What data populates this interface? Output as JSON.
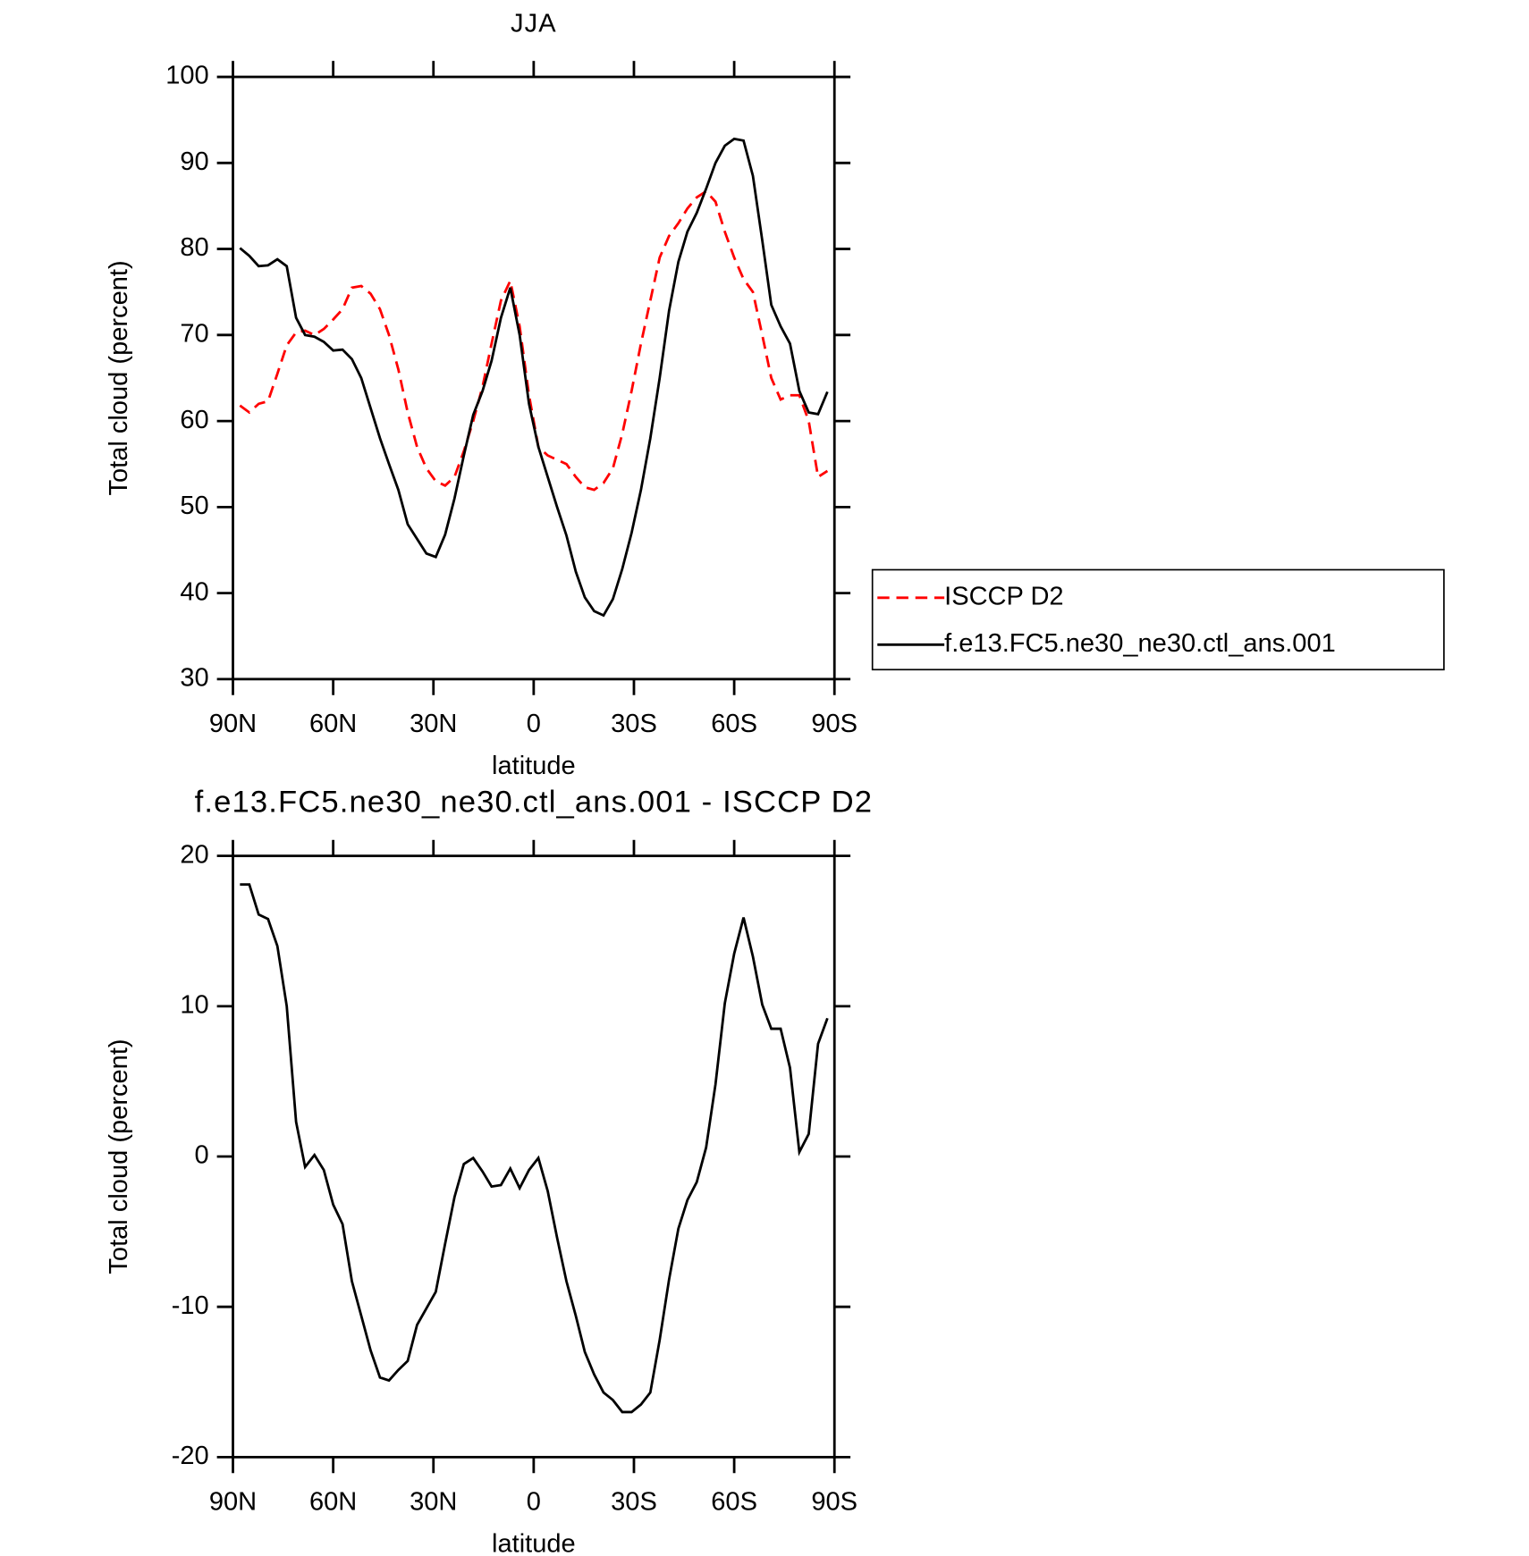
{
  "chart_data": [
    {
      "type": "line",
      "title": "JJA",
      "xlabel": "latitude",
      "ylabel": "Total cloud (percent)",
      "x": [
        87.9,
        85.1,
        82.3,
        79.5,
        76.7,
        73.9,
        71.1,
        68.4,
        65.6,
        62.8,
        60.0,
        57.2,
        54.4,
        51.6,
        48.8,
        46.0,
        43.3,
        40.5,
        37.7,
        34.9,
        32.1,
        29.3,
        26.5,
        23.7,
        20.9,
        18.1,
        15.3,
        12.6,
        9.8,
        7.0,
        4.2,
        1.4,
        -1.4,
        -4.2,
        -7.0,
        -9.8,
        -12.6,
        -15.3,
        -18.1,
        -20.9,
        -23.7,
        -26.5,
        -29.3,
        -32.1,
        -34.9,
        -37.7,
        -40.5,
        -43.3,
        -46.0,
        -48.8,
        -51.6,
        -54.4,
        -57.2,
        -60.0,
        -62.8,
        -65.6,
        -68.4,
        -71.1,
        -73.9,
        -76.7,
        -79.5,
        -82.3,
        -85.1,
        -87.9
      ],
      "series": [
        {
          "name": "ISCCP D2",
          "color": "#ff0000",
          "line_style": "dashed",
          "values": [
            61.8,
            61,
            62,
            62.3,
            65.5,
            68.8,
            70.3,
            70.5,
            70,
            70.7,
            71.8,
            73,
            75.5,
            75.7,
            74.8,
            73,
            70,
            66,
            61,
            57,
            54.5,
            53,
            52.5,
            53.5,
            56.5,
            60,
            64,
            69,
            74,
            76.3,
            71,
            63,
            57,
            56,
            55.5,
            55,
            53.5,
            52.3,
            52,
            52.8,
            54.5,
            58.5,
            63.5,
            69,
            74,
            79,
            81.5,
            83,
            84.7,
            86,
            86.7,
            85.5,
            82,
            79,
            76.5,
            75,
            70,
            65,
            62.5,
            63,
            63,
            60,
            53.5,
            54.2
          ]
        },
        {
          "name": "f.e13.FC5.ne30_ne30.ctl_ans.001",
          "color": "#000000",
          "line_style": "solid",
          "values": [
            80.1,
            79.2,
            78,
            78.1,
            78.8,
            78,
            72,
            70,
            69.8,
            69.2,
            68.2,
            68.3,
            67.2,
            65,
            61.5,
            58,
            55,
            52,
            48,
            46.3,
            44.6,
            44.2,
            46.8,
            51,
            56,
            60.7,
            63.5,
            67,
            72,
            75.5,
            70,
            62,
            57,
            53.5,
            50,
            46.7,
            42.5,
            39.5,
            37.9,
            37.4,
            39.3,
            42.8,
            47,
            52,
            58,
            65,
            72.8,
            78.5,
            82,
            84.2,
            87,
            90,
            92,
            92.8,
            92.6,
            88.5,
            81,
            73.5,
            71,
            69,
            63.5,
            61,
            60.8,
            63.4
          ]
        }
      ],
      "xlim": [
        90,
        -90
      ],
      "xticks": [
        {
          "value": 90,
          "label": "90N"
        },
        {
          "value": 60,
          "label": "60N"
        },
        {
          "value": 30,
          "label": "30N"
        },
        0,
        {
          "value": -30,
          "label": "30S"
        },
        {
          "value": -60,
          "label": "60S"
        },
        {
          "value": -90,
          "label": "90S"
        }
      ],
      "ylim": [
        30,
        100
      ],
      "yticks": [
        30,
        40,
        50,
        60,
        70,
        80,
        90,
        100
      ],
      "legend": "right"
    },
    {
      "type": "line",
      "title": "f.e13.FC5.ne30_ne30.ctl_ans.001 - ISCCP D2",
      "xlabel": "latitude",
      "ylabel": "Total cloud (percent)",
      "x": [
        87.9,
        85.1,
        82.3,
        79.5,
        76.7,
        73.9,
        71.1,
        68.4,
        65.6,
        62.8,
        60.0,
        57.2,
        54.4,
        51.6,
        48.8,
        46.0,
        43.3,
        40.5,
        37.7,
        34.9,
        32.1,
        29.3,
        26.5,
        23.7,
        20.9,
        18.1,
        15.3,
        12.6,
        9.8,
        7.0,
        4.2,
        1.4,
        -1.4,
        -4.2,
        -7.0,
        -9.8,
        -12.6,
        -15.3,
        -18.1,
        -20.9,
        -23.7,
        -26.5,
        -29.3,
        -32.1,
        -34.9,
        -37.7,
        -40.5,
        -43.3,
        -46.0,
        -48.8,
        -51.6,
        -54.4,
        -57.2,
        -60.0,
        -62.8,
        -65.6,
        -68.4,
        -71.1,
        -73.9,
        -76.7,
        -79.5,
        -82.3,
        -85.1,
        -87.9
      ],
      "series": [
        {
          "color": "#000000",
          "line_style": "solid",
          "values": [
            18.1,
            18.1,
            16.1,
            15.8,
            14,
            10,
            2.3,
            -0.7,
            0.1,
            -0.9,
            -3.2,
            -4.5,
            -8.3,
            -10.6,
            -12.9,
            -14.7,
            -14.9,
            -14.2,
            -13.6,
            -11.2,
            -10.1,
            -9,
            -5.8,
            -2.7,
            -0.5,
            -0.1,
            -1,
            -2,
            -1.9,
            -0.8,
            -2.1,
            -0.9,
            -0.1,
            -2.3,
            -5.4,
            -8.3,
            -10.6,
            -13,
            -14.5,
            -15.7,
            -16.2,
            -17,
            -17,
            -16.5,
            -15.7,
            -12.2,
            -8.2,
            -4.8,
            -2.9,
            -1.7,
            0.6,
            4.8,
            10.2,
            13.5,
            15.9,
            13.3,
            10.1,
            8.5,
            8.5,
            5.9,
            0.3,
            1.5,
            7.5,
            9.2
          ]
        }
      ],
      "xlim": [
        90,
        -90
      ],
      "xticks": [
        {
          "value": 90,
          "label": "90N"
        },
        {
          "value": 60,
          "label": "60N"
        },
        {
          "value": 30,
          "label": "30N"
        },
        0,
        {
          "value": -30,
          "label": "30S"
        },
        {
          "value": -60,
          "label": "60S"
        },
        {
          "value": -90,
          "label": "90S"
        }
      ],
      "ylim": [
        -20,
        20
      ],
      "yticks": [
        -20,
        -10,
        0,
        10,
        20
      ]
    }
  ]
}
